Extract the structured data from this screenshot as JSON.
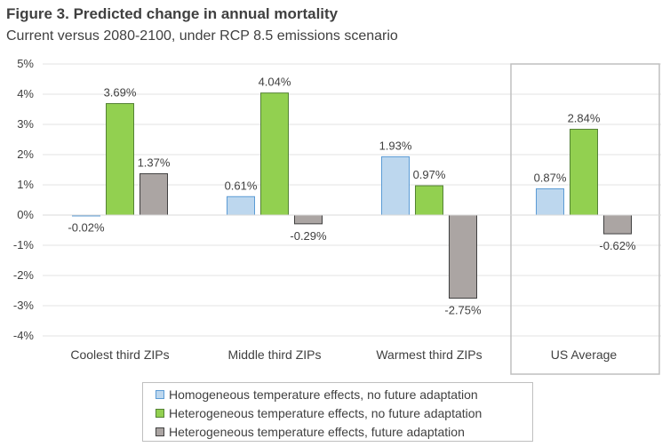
{
  "title": "Figure 3. Predicted change in annual mortality",
  "subtitle": "Current versus 2080-2100, under RCP 8.5 emissions scenario",
  "chart_data": {
    "type": "bar",
    "categories": [
      "Coolest third ZIPs",
      "Middle third ZIPs",
      "Warmest third ZIPs",
      "US Average"
    ],
    "series": [
      {
        "name": "Homogeneous temperature effects, no future adaptation",
        "values": [
          -0.02,
          0.61,
          1.93,
          0.87
        ],
        "labels": [
          "-0.02%",
          "0.61%",
          "1.93%",
          "0.87%"
        ],
        "color": "#bdd7ee",
        "border": "#5b9bd5"
      },
      {
        "name": "Heterogeneous temperature effects, no future adaptation",
        "values": [
          3.69,
          4.04,
          0.97,
          2.84
        ],
        "labels": [
          "3.69%",
          "4.04%",
          "0.97%",
          "2.84%"
        ],
        "color": "#92d050",
        "border": "#548235"
      },
      {
        "name": "Heterogeneous temperature effects, future adaptation",
        "values": [
          1.37,
          -0.29,
          -2.75,
          -0.62
        ],
        "labels": [
          "1.37%",
          "-0.29%",
          "-2.75%",
          "-0.62%"
        ],
        "color": "#aba5a3",
        "border": "#404040"
      }
    ],
    "ylim": [
      -4,
      5
    ],
    "yticks": [
      5,
      4,
      3,
      2,
      1,
      0,
      -1,
      -2,
      -3,
      -4
    ],
    "ytick_labels": [
      "5%",
      "4%",
      "3%",
      "2%",
      "1%",
      "0%",
      "-1%",
      "-2%",
      "-3%",
      "-4%"
    ],
    "grid": true,
    "highlighted_category": "US Average",
    "legend_position": "bottom"
  }
}
